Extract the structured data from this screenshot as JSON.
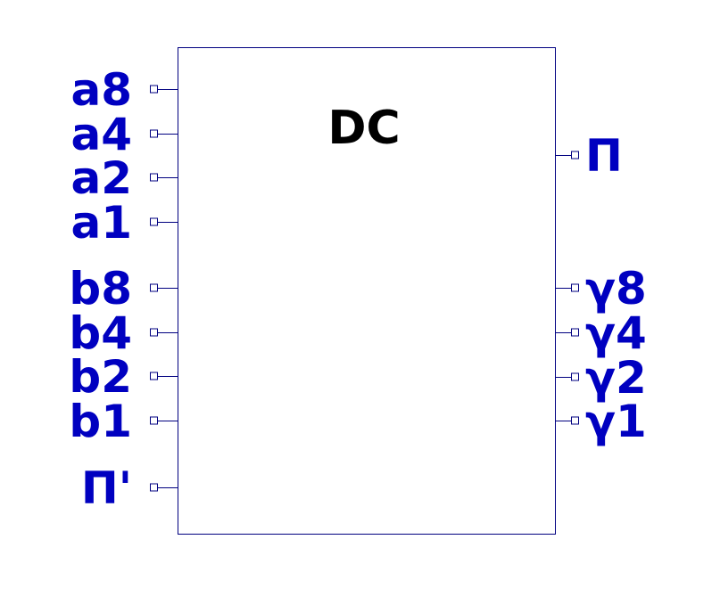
{
  "block": {
    "title": "DC",
    "inputs": [
      {
        "id": "a8",
        "label": "a8"
      },
      {
        "id": "a4",
        "label": "a4"
      },
      {
        "id": "a2",
        "label": "a2"
      },
      {
        "id": "a1",
        "label": "a1"
      },
      {
        "id": "b8",
        "label": "b8"
      },
      {
        "id": "b4",
        "label": "b4"
      },
      {
        "id": "b2",
        "label": "b2"
      },
      {
        "id": "b1",
        "label": "b1"
      },
      {
        "id": "carry-in",
        "label": "П'"
      }
    ],
    "outputs": [
      {
        "id": "carry-out",
        "label": "П"
      },
      {
        "id": "y8",
        "label": "γ8"
      },
      {
        "id": "y4",
        "label": "γ4"
      },
      {
        "id": "y2",
        "label": "γ2"
      },
      {
        "id": "y1",
        "label": "γ1"
      }
    ]
  },
  "colors": {
    "label": "#0000c0",
    "outline": "#000080",
    "title": "#000000"
  }
}
